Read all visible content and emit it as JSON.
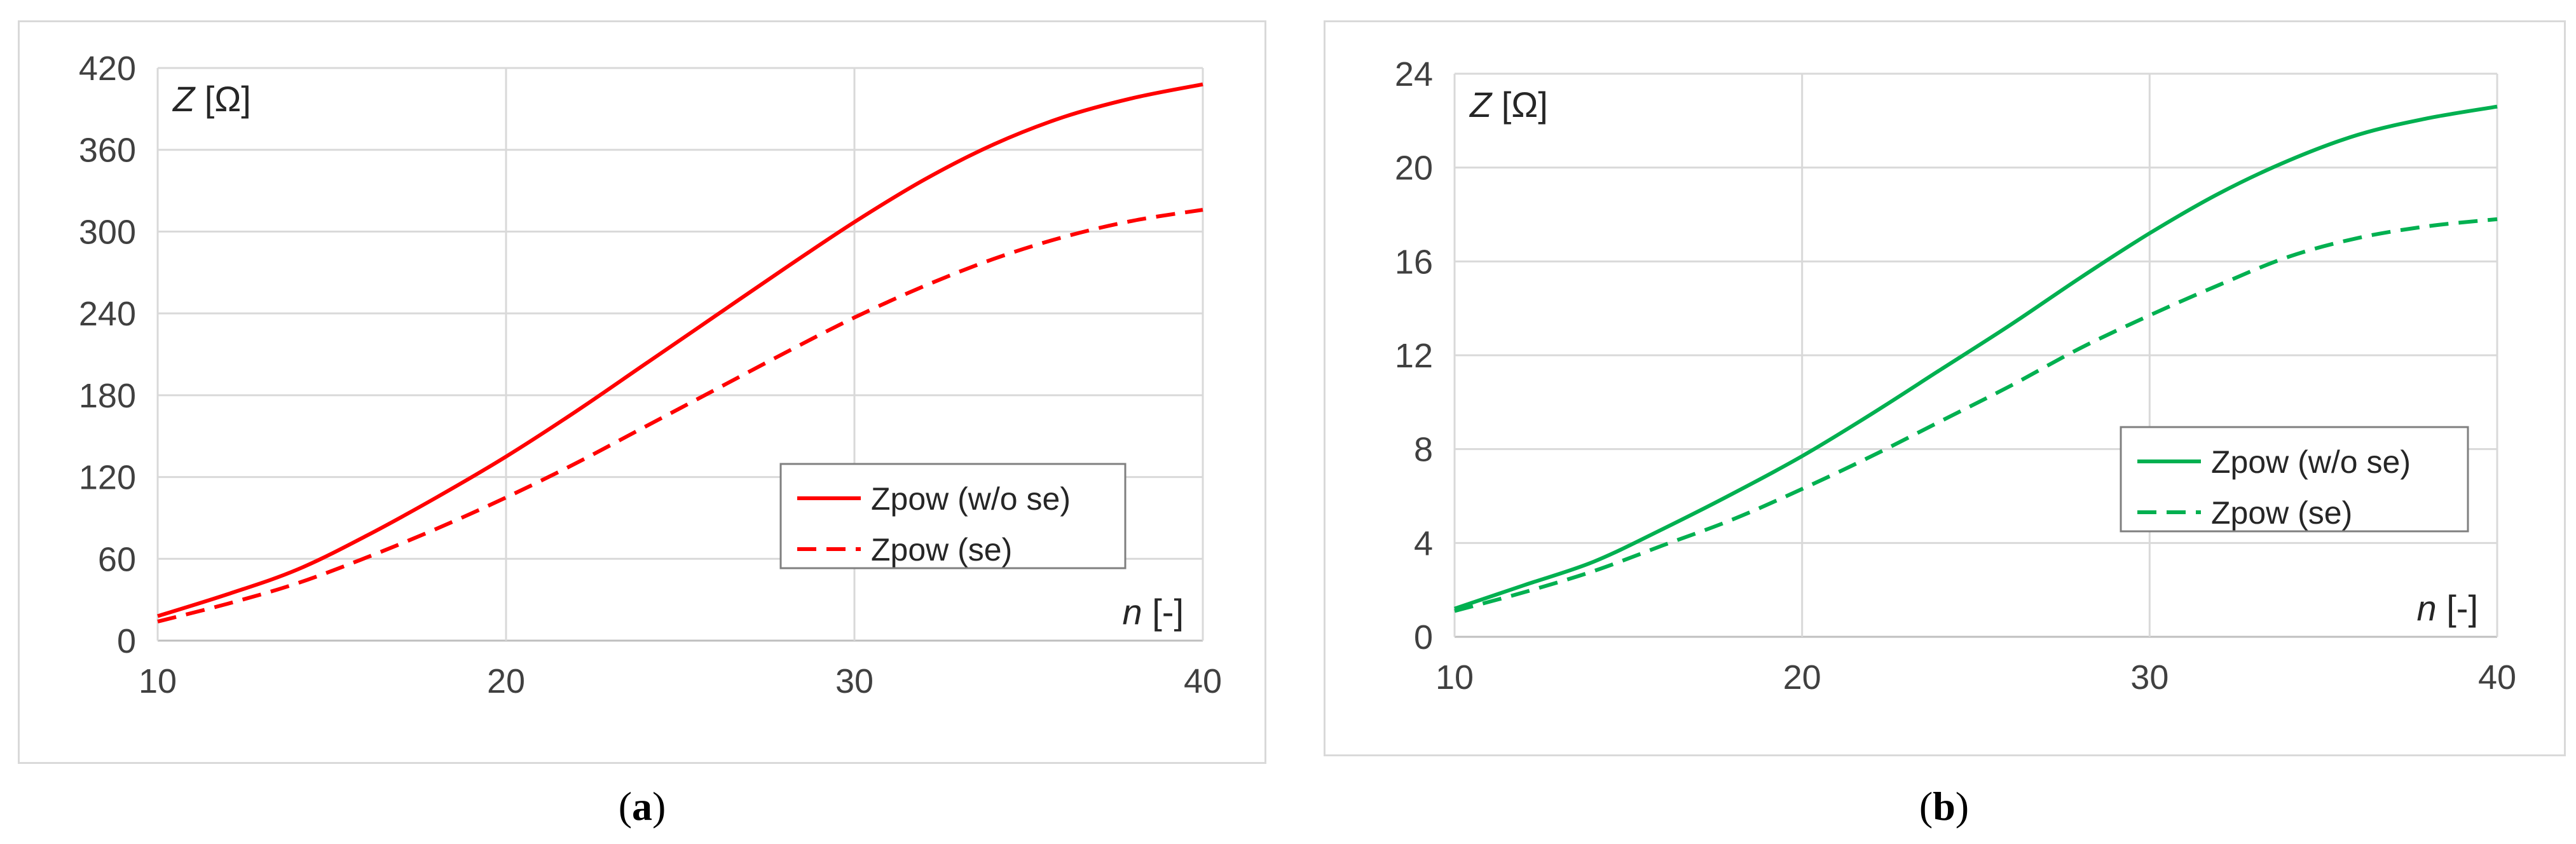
{
  "chart_data": [
    {
      "type": "line",
      "panel_label": "a",
      "ylabel": "Z [Ω]",
      "xlabel": "n [-]",
      "xlim": [
        10,
        40
      ],
      "ylim": [
        0,
        420
      ],
      "xticks": [
        10,
        20,
        30,
        40
      ],
      "yticks": [
        0,
        60,
        120,
        180,
        240,
        300,
        360,
        420
      ],
      "grid": true,
      "legend_position": "center-right",
      "color": "#ff0000",
      "x": [
        10,
        12,
        14,
        16,
        18,
        20,
        22,
        24,
        26,
        28,
        30,
        32,
        34,
        36,
        38,
        40
      ],
      "series": [
        {
          "name": "Zpow (w/o se)",
          "style": "solid",
          "values": [
            18,
            34,
            52,
            77,
            105,
            135,
            168,
            203,
            238,
            273,
            307,
            338,
            364,
            384,
            398,
            408
          ]
        },
        {
          "name": "Zpow (se)",
          "style": "dashed",
          "values": [
            14,
            27,
            42,
            61,
            82,
            105,
            130,
            157,
            184,
            211,
            237,
            260,
            280,
            296,
            308,
            316
          ]
        }
      ]
    },
    {
      "type": "line",
      "panel_label": "b",
      "ylabel": "Z [Ω]",
      "xlabel": "n [-]",
      "xlim": [
        10,
        40
      ],
      "ylim": [
        0,
        24
      ],
      "xticks": [
        10,
        20,
        30,
        40
      ],
      "yticks": [
        0,
        4,
        8,
        12,
        16,
        20,
        24
      ],
      "grid": true,
      "legend_position": "center-right",
      "color": "#00b050",
      "x": [
        10,
        12,
        14,
        16,
        18,
        20,
        22,
        24,
        26,
        28,
        30,
        32,
        34,
        36,
        38,
        40
      ],
      "series": [
        {
          "name": "Zpow (w/o se)",
          "style": "solid",
          "values": [
            1.2,
            2.2,
            3.2,
            4.6,
            6.1,
            7.7,
            9.5,
            11.4,
            13.3,
            15.3,
            17.2,
            18.9,
            20.3,
            21.4,
            22.1,
            22.6
          ]
        },
        {
          "name": "Zpow (se)",
          "style": "dashed",
          "values": [
            1.1,
            1.9,
            2.8,
            3.9,
            5.0,
            6.3,
            7.7,
            9.2,
            10.7,
            12.3,
            13.7,
            15.0,
            16.2,
            17.0,
            17.5,
            17.8
          ]
        }
      ]
    }
  ]
}
